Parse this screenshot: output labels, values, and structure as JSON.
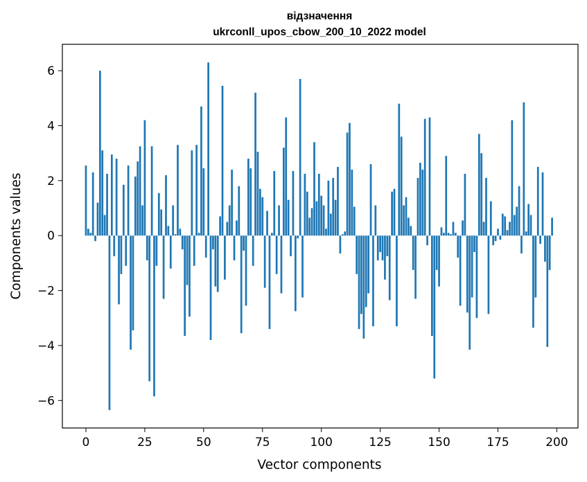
{
  "chart_data": {
    "type": "bar",
    "title": "відзначення",
    "subtitle": "ukrconll_upos_cbow_200_10_2022 model",
    "xlabel": "Vector components",
    "ylabel": "Components values",
    "xlim": [
      -10,
      209
    ],
    "ylim": [
      -7,
      6.96
    ],
    "xticks": [
      0,
      25,
      50,
      75,
      100,
      125,
      150,
      175,
      200
    ],
    "yticks": [
      -6,
      -4,
      -2,
      0,
      2,
      4,
      6
    ],
    "xtick_labels": [
      "0",
      "25",
      "50",
      "75",
      "100",
      "125",
      "150",
      "175",
      "200"
    ],
    "ytick_labels": [
      "−6",
      "−4",
      "−2",
      "0",
      "2",
      "4",
      "6"
    ],
    "bar_color": "#1f77b4",
    "values": [
      2.55,
      0.25,
      0.1,
      2.3,
      -0.2,
      1.2,
      6.0,
      3.1,
      0.75,
      2.25,
      -6.35,
      2.95,
      -0.75,
      2.8,
      -2.5,
      -1.4,
      1.85,
      -1.1,
      2.55,
      -4.15,
      -3.45,
      2.15,
      2.7,
      3.25,
      1.1,
      4.2,
      -0.9,
      -5.3,
      3.25,
      -5.85,
      -1.1,
      1.55,
      0.95,
      -2.3,
      2.2,
      0.35,
      -1.2,
      1.1,
      0.05,
      3.3,
      0.25,
      -0.5,
      -3.65,
      -1.8,
      -2.95,
      3.1,
      -1.1,
      3.3,
      0.1,
      4.7,
      2.45,
      -0.8,
      6.3,
      -3.8,
      -0.5,
      -1.85,
      -2.05,
      0.7,
      5.45,
      -1.6,
      0.5,
      1.1,
      2.4,
      -0.9,
      0.55,
      1.8,
      -3.55,
      -0.55,
      -2.55,
      2.8,
      2.45,
      -1.1,
      5.2,
      3.05,
      1.7,
      1.4,
      -1.9,
      0.9,
      -3.4,
      0.1,
      2.35,
      -1.4,
      1.1,
      -2.1,
      3.2,
      4.3,
      1.3,
      -0.75,
      2.35,
      -2.75,
      -0.1,
      5.7,
      -2.25,
      2.25,
      1.6,
      0.65,
      1.0,
      3.4,
      1.25,
      2.25,
      1.45,
      1.1,
      0.25,
      2.0,
      0.8,
      2.1,
      1.3,
      2.5,
      -0.65,
      0.05,
      0.15,
      3.75,
      4.1,
      2.4,
      1.05,
      -1.4,
      -3.4,
      -2.85,
      -3.75,
      -2.6,
      -2.1,
      2.6,
      -3.3,
      1.1,
      -0.9,
      -0.6,
      -0.9,
      -1.6,
      -0.75,
      -2.35,
      1.6,
      1.7,
      -3.3,
      4.8,
      3.6,
      1.1,
      1.4,
      0.65,
      0.35,
      -1.25,
      -2.3,
      2.1,
      2.65,
      2.4,
      4.25,
      -0.35,
      4.3,
      -3.65,
      -5.2,
      -1.25,
      -1.85,
      0.3,
      0.1,
      2.9,
      0.1,
      0.05,
      0.5,
      0.1,
      -0.8,
      -2.55,
      0.55,
      2.25,
      -2.8,
      -4.15,
      -2.25,
      -0.6,
      -3.0,
      3.7,
      3.0,
      0.5,
      2.1,
      -2.85,
      1.25,
      -0.35,
      -0.2,
      0.25,
      -0.15,
      0.8,
      0.7,
      0.2,
      0.5,
      4.2,
      0.75,
      1.05,
      1.8,
      -0.65,
      4.85,
      0.15,
      1.15,
      0.75,
      -3.35,
      -2.25,
      2.5,
      -0.3,
      2.3,
      -0.95,
      -4.05,
      -1.25,
      0.65
    ]
  }
}
